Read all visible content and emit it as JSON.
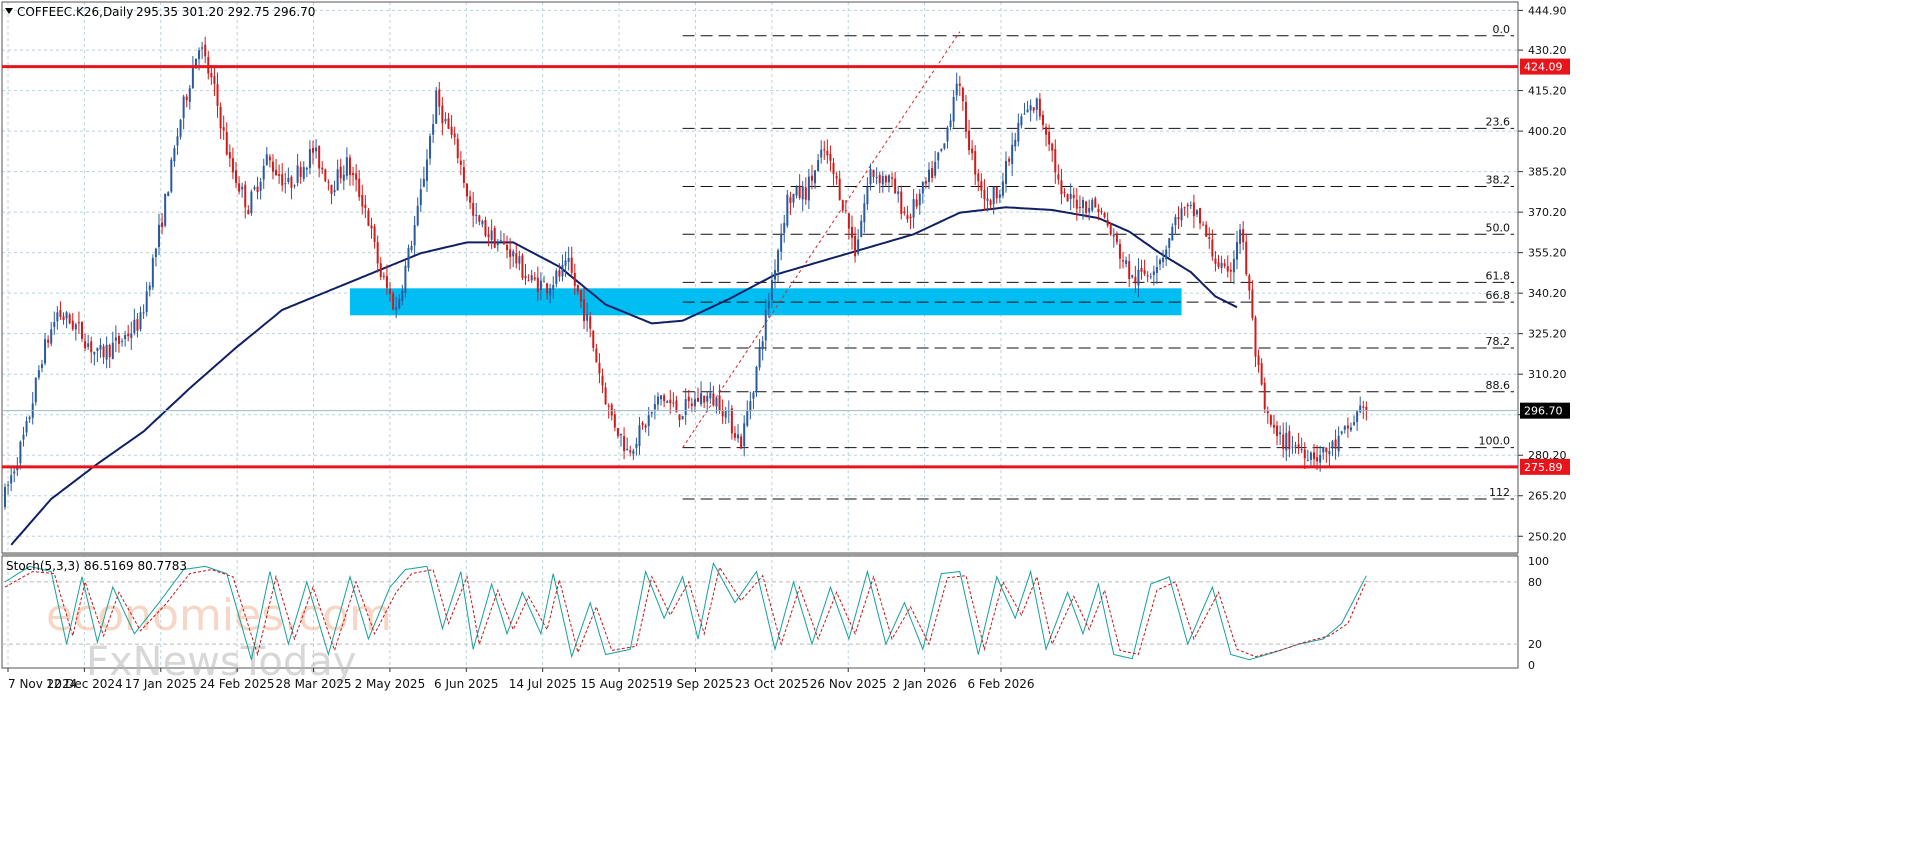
{
  "header": {
    "symbol": "COFFEEC.K26,Daily",
    "ohlc": "295.35 301.20 292.75 296.70"
  },
  "colors": {
    "background": "#ffffff",
    "grid": "#b8d4dc",
    "bull": "#2a5a9e",
    "bear": "#d21a1a",
    "ma": "#102064",
    "level": "#e8141c",
    "zone": "#00bdf2",
    "stoch_main": "#16a09a",
    "stoch_signal": "#c21818"
  },
  "chart_data": [
    {
      "type": "candlestick",
      "title": "COFFEEC.K26,Daily",
      "ylim": [
        244,
        448
      ],
      "y_ticks": [
        "444.90",
        "430.20",
        "415.20",
        "400.20",
        "385.20",
        "370.20",
        "355.20",
        "340.20",
        "325.20",
        "310.20",
        "295.20",
        "280.20",
        "265.20",
        "250.20"
      ],
      "x_ticks": [
        "7 Nov 2024",
        "12 Dec 2024",
        "17 Jan 2025",
        "24 Feb 2025",
        "28 Mar 2025",
        "2 May 2025",
        "6 Jun 2025",
        "14 Jul 2025",
        "15 Aug 2025",
        "19 Sep 2025",
        "23 Oct 2025",
        "26 Nov 2025",
        "2 Jan 2026",
        "6 Feb 2026"
      ],
      "grid": true,
      "anchors": [
        [
          0,
          262
        ],
        [
          8,
          290
        ],
        [
          13,
          317
        ],
        [
          18,
          333
        ],
        [
          24,
          328
        ],
        [
          31,
          317
        ],
        [
          38,
          322
        ],
        [
          45,
          330
        ],
        [
          52,
          368
        ],
        [
          58,
          405
        ],
        [
          64,
          433
        ],
        [
          69,
          415
        ],
        [
          74,
          388
        ],
        [
          80,
          372
        ],
        [
          86,
          390
        ],
        [
          93,
          380
        ],
        [
          101,
          393
        ],
        [
          107,
          380
        ],
        [
          112,
          388
        ],
        [
          118,
          372
        ],
        [
          123,
          347
        ],
        [
          128,
          334
        ],
        [
          135,
          370
        ],
        [
          141,
          412
        ],
        [
          148,
          392
        ],
        [
          153,
          368
        ],
        [
          160,
          360
        ],
        [
          165,
          356
        ],
        [
          171,
          345
        ],
        [
          177,
          343
        ],
        [
          184,
          350
        ],
        [
          190,
          330
        ],
        [
          197,
          297
        ],
        [
          203,
          282
        ],
        [
          208,
          290
        ],
        [
          214,
          302
        ],
        [
          220,
          296
        ],
        [
          227,
          302
        ],
        [
          233,
          300
        ],
        [
          240,
          285
        ],
        [
          245,
          312
        ],
        [
          250,
          345
        ],
        [
          255,
          375
        ],
        [
          261,
          378
        ],
        [
          267,
          393
        ],
        [
          272,
          378
        ],
        [
          277,
          356
        ],
        [
          282,
          385
        ],
        [
          288,
          382
        ],
        [
          294,
          368
        ],
        [
          300,
          380
        ],
        [
          306,
          395
        ],
        [
          310,
          420
        ],
        [
          315,
          390
        ],
        [
          320,
          373
        ],
        [
          325,
          382
        ],
        [
          331,
          405
        ],
        [
          336,
          410
        ],
        [
          340,
          398
        ],
        [
          344,
          375
        ],
        [
          350,
          374
        ],
        [
          356,
          372
        ],
        [
          361,
          360
        ],
        [
          367,
          345
        ],
        [
          372,
          348
        ],
        [
          377,
          355
        ],
        [
          382,
          370
        ],
        [
          388,
          370
        ],
        [
          393,
          355
        ],
        [
          398,
          345
        ],
        [
          402,
          365
        ],
        [
          405,
          340
        ],
        [
          407,
          318
        ],
        [
          410,
          296
        ],
        [
          414,
          286
        ],
        [
          418,
          285
        ],
        [
          423,
          282
        ],
        [
          428,
          280
        ],
        [
          433,
          284
        ],
        [
          438,
          291
        ],
        [
          442,
          300
        ]
      ],
      "candle_count": 443,
      "current_price": "296.70",
      "series": [
        {
          "name": "",
          "type": "line",
          "anchors": [
            [
              2,
              247
            ],
            [
              15,
              264
            ],
            [
              30,
              277
            ],
            [
              45,
              289
            ],
            [
              60,
              305
            ],
            [
              75,
              320
            ],
            [
              90,
              334
            ],
            [
              105,
              341
            ],
            [
              120,
              348
            ],
            [
              135,
              355
            ],
            [
              150,
              359
            ],
            [
              165,
              359
            ],
            [
              180,
              350
            ],
            [
              195,
              336
            ],
            [
              210,
              329
            ],
            [
              220,
              330
            ],
            [
              235,
              338
            ],
            [
              250,
              347
            ],
            [
              265,
              352
            ],
            [
              280,
              357
            ],
            [
              295,
              362
            ],
            [
              310,
              370
            ],
            [
              325,
              372
            ],
            [
              340,
              371
            ],
            [
              355,
              368
            ],
            [
              365,
              363
            ],
            [
              375,
              355
            ],
            [
              385,
              348
            ],
            [
              393,
              339
            ],
            [
              400,
              335
            ]
          ]
        }
      ],
      "horizontal_levels": [
        {
          "value": 424.09,
          "label": "424.09"
        },
        {
          "value": 275.89,
          "label": "275.89"
        }
      ],
      "zone": {
        "from_index": 112,
        "to_index": 382,
        "low": 332,
        "high": 342
      },
      "fibonacci": {
        "from_index": 220,
        "to_index": 442,
        "levels": [
          {
            "value": 435.5,
            "label": "0.0"
          },
          {
            "value": 401.2,
            "label": "23.6"
          },
          {
            "value": 379.7,
            "label": "38.2"
          },
          {
            "value": 362.0,
            "label": "50.0"
          },
          {
            "value": 344.2,
            "label": "61.8"
          },
          {
            "value": 336.9,
            "label": "66.8"
          },
          {
            "value": 319.9,
            "label": "78.2"
          },
          {
            "value": 303.7,
            "label": "88.6"
          },
          {
            "value": 283.0,
            "label": "100.0"
          },
          {
            "value": 264.0,
            "label": "112"
          }
        ]
      },
      "trendline": {
        "from": [
          220,
          283
        ],
        "to": [
          310,
          437
        ]
      }
    },
    {
      "type": "line",
      "title": "Stoch(5,3,3)",
      "values_text": "86.5169 80.7783",
      "ylim": [
        -3,
        105
      ],
      "y_ticks": [
        "100",
        "80",
        "20",
        "0"
      ],
      "levels": [
        80,
        20
      ],
      "series": [
        {
          "name": "",
          "anchors": [
            [
              0,
              80
            ],
            [
              8,
              95
            ],
            [
              15,
              90
            ],
            [
              20,
              20
            ],
            [
              25,
              85
            ],
            [
              30,
              22
            ],
            [
              35,
              75
            ],
            [
              42,
              30
            ],
            [
              50,
              60
            ],
            [
              58,
              92
            ],
            [
              65,
              95
            ],
            [
              72,
              88
            ],
            [
              80,
              5
            ],
            [
              86,
              90
            ],
            [
              92,
              20
            ],
            [
              98,
              80
            ],
            [
              105,
              10
            ],
            [
              112,
              85
            ],
            [
              118,
              25
            ],
            [
              125,
              75
            ],
            [
              130,
              92
            ],
            [
              137,
              95
            ],
            [
              142,
              35
            ],
            [
              148,
              90
            ],
            [
              152,
              15
            ],
            [
              158,
              78
            ],
            [
              163,
              30
            ],
            [
              168,
              70
            ],
            [
              174,
              30
            ],
            [
              178,
              88
            ],
            [
              184,
              8
            ],
            [
              190,
              60
            ],
            [
              195,
              10
            ],
            [
              203,
              15
            ],
            [
              208,
              90
            ],
            [
              214,
              45
            ],
            [
              220,
              85
            ],
            [
              225,
              25
            ],
            [
              230,
              98
            ],
            [
              237,
              60
            ],
            [
              244,
              90
            ],
            [
              250,
              15
            ],
            [
              256,
              80
            ],
            [
              262,
              20
            ],
            [
              268,
              75
            ],
            [
              274,
              25
            ],
            [
              280,
              90
            ],
            [
              286,
              20
            ],
            [
              292,
              60
            ],
            [
              298,
              15
            ],
            [
              304,
              88
            ],
            [
              310,
              90
            ],
            [
              316,
              10
            ],
            [
              322,
              85
            ],
            [
              328,
              45
            ],
            [
              333,
              90
            ],
            [
              338,
              15
            ],
            [
              345,
              70
            ],
            [
              350,
              30
            ],
            [
              355,
              78
            ],
            [
              360,
              10
            ],
            [
              366,
              6
            ],
            [
              372,
              78
            ],
            [
              378,
              85
            ],
            [
              384,
              20
            ],
            [
              392,
              75
            ],
            [
              398,
              10
            ],
            [
              404,
              5
            ],
            [
              412,
              12
            ],
            [
              420,
              20
            ],
            [
              428,
              25
            ],
            [
              434,
              40
            ],
            [
              442,
              86
            ]
          ]
        },
        {
          "name": "",
          "anchors": [
            [
              0,
              75
            ],
            [
              9,
              90
            ],
            [
              16,
              88
            ],
            [
              22,
              28
            ],
            [
              26,
              80
            ],
            [
              32,
              28
            ],
            [
              37,
              70
            ],
            [
              44,
              33
            ],
            [
              52,
              58
            ],
            [
              60,
              88
            ],
            [
              67,
              92
            ],
            [
              74,
              85
            ],
            [
              82,
              10
            ],
            [
              88,
              85
            ],
            [
              94,
              25
            ],
            [
              100,
              75
            ],
            [
              107,
              14
            ],
            [
              114,
              80
            ],
            [
              120,
              30
            ],
            [
              127,
              70
            ],
            [
              132,
              88
            ],
            [
              139,
              92
            ],
            [
              144,
              40
            ],
            [
              150,
              85
            ],
            [
              154,
              20
            ],
            [
              160,
              72
            ],
            [
              165,
              34
            ],
            [
              170,
              66
            ],
            [
              176,
              34
            ],
            [
              180,
              82
            ],
            [
              186,
              12
            ],
            [
              192,
              56
            ],
            [
              197,
              14
            ],
            [
              205,
              18
            ],
            [
              210,
              85
            ],
            [
              216,
              48
            ],
            [
              222,
              80
            ],
            [
              227,
              30
            ],
            [
              232,
              94
            ],
            [
              239,
              62
            ],
            [
              246,
              86
            ],
            [
              252,
              20
            ],
            [
              258,
              75
            ],
            [
              264,
              25
            ],
            [
              270,
              70
            ],
            [
              276,
              30
            ],
            [
              282,
              85
            ],
            [
              288,
              25
            ],
            [
              294,
              56
            ],
            [
              300,
              20
            ],
            [
              306,
              84
            ],
            [
              312,
              86
            ],
            [
              318,
              15
            ],
            [
              324,
              80
            ],
            [
              330,
              48
            ],
            [
              335,
              85
            ],
            [
              340,
              20
            ],
            [
              347,
              66
            ],
            [
              352,
              34
            ],
            [
              357,
              72
            ],
            [
              362,
              14
            ],
            [
              368,
              10
            ],
            [
              374,
              72
            ],
            [
              380,
              80
            ],
            [
              386,
              25
            ],
            [
              394,
              70
            ],
            [
              400,
              15
            ],
            [
              406,
              8
            ],
            [
              414,
              14
            ],
            [
              422,
              22
            ],
            [
              430,
              28
            ],
            [
              436,
              40
            ],
            [
              442,
              81
            ]
          ]
        }
      ]
    }
  ],
  "watermark": {
    "line1": "economies.com",
    "line2": "FxNewsToday"
  }
}
